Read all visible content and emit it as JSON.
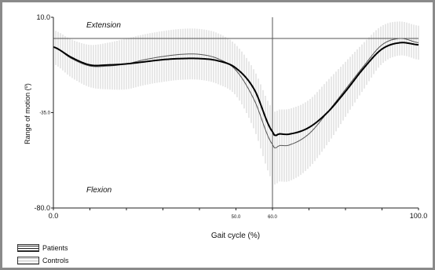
{
  "chart_data": {
    "type": "line",
    "title": "",
    "xlabel": "Gait cycle (%)",
    "ylabel": "Range of motion (º)",
    "xlim": [
      0,
      100
    ],
    "ylim": [
      -80,
      10
    ],
    "x_ticks": [
      {
        "value": 0,
        "label": "0.0",
        "size": "large"
      },
      {
        "value": 50,
        "label": "50.0",
        "size": "small"
      },
      {
        "value": 60,
        "label": "60.0",
        "size": "small"
      },
      {
        "value": 100,
        "label": "100.0",
        "size": "large"
      }
    ],
    "y_ticks": [
      {
        "value": 10,
        "label": "10.0",
        "size": "large"
      },
      {
        "value": -35,
        "label": "-35.0",
        "size": "small"
      },
      {
        "value": -80,
        "label": "-80.0",
        "size": "large"
      }
    ],
    "reference_lines": {
      "horizontal_y": 0,
      "vertical_x": 60
    },
    "annotations": {
      "extension": "Extension",
      "flexion": "Flexion"
    },
    "x": [
      0,
      5,
      10,
      15,
      20,
      25,
      30,
      35,
      40,
      45,
      50,
      55,
      60,
      62,
      65,
      70,
      75,
      80,
      85,
      90,
      95,
      100
    ],
    "series": [
      {
        "name": "Patients",
        "color": "#000000",
        "values": [
          -4,
          -9,
          -12.5,
          -12.5,
          -12,
          -11,
          -10,
          -9.5,
          -9.5,
          -10.5,
          -14,
          -24,
          -44,
          -45,
          -45,
          -42,
          -35,
          -25,
          -14,
          -5,
          -2,
          -3
        ]
      },
      {
        "name": "Controls",
        "color": "#555555",
        "values": [
          -4,
          -9.5,
          -13,
          -13,
          -12,
          -10,
          -8.5,
          -7.5,
          -7.5,
          -9.5,
          -15,
          -29,
          -50,
          -50.5,
          -50,
          -45,
          -35,
          -24,
          -13,
          -3,
          0,
          -2
        ],
        "sd": [
          8,
          9,
          10,
          11,
          12,
          12,
          12,
          12,
          12,
          12,
          12,
          14,
          17,
          17,
          17,
          16,
          15,
          13,
          11,
          9,
          8,
          8
        ]
      }
    ],
    "grid": false,
    "legend_position": "bottom-left"
  }
}
